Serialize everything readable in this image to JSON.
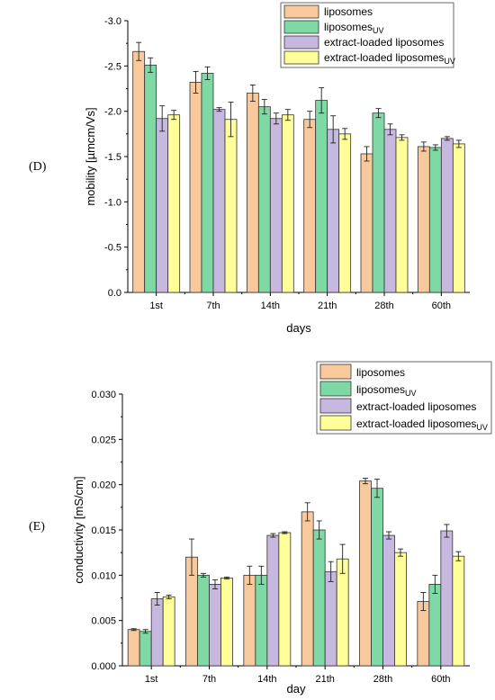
{
  "panels": [
    {
      "label": "(D)"
    },
    {
      "label": "(E)"
    }
  ],
  "chart_data": [
    {
      "type": "bar",
      "panel": "(D)",
      "xlabel": "days",
      "ylabel": "mobility [µmcm/Vs]",
      "categories": [
        "1st",
        "7th",
        "14th",
        "21th",
        "28th",
        "60th"
      ],
      "ylim": [
        0.0,
        -3.0
      ],
      "y_axis_inverted": true,
      "yticks": [
        "0.0",
        "-0.5",
        "-1.0",
        "-1.5",
        "-2.0",
        "-2.5",
        "-3.0"
      ],
      "ytick_values": [
        0.0,
        -0.5,
        -1.0,
        -1.5,
        -2.0,
        -2.5,
        -3.0
      ],
      "legend_position": "top-right",
      "series": [
        {
          "name": "liposomes",
          "color": "#F9C99E",
          "values": [
            -2.66,
            -2.32,
            -2.2,
            -1.91,
            -1.53,
            -1.61
          ],
          "errors": [
            0.1,
            0.12,
            0.09,
            0.09,
            0.08,
            0.05
          ]
        },
        {
          "name": "liposomesUV",
          "color": "#7FD9A4",
          "values": [
            -2.51,
            -2.42,
            -2.05,
            -2.12,
            -1.98,
            -1.6
          ],
          "errors": [
            0.08,
            0.07,
            0.08,
            0.14,
            0.05,
            0.03
          ]
        },
        {
          "name": "extract-loaded liposomes",
          "color": "#C6B8DE",
          "values": [
            -1.92,
            -2.02,
            -1.92,
            -1.8,
            -1.8,
            -1.7
          ],
          "errors": [
            0.14,
            0.02,
            0.06,
            0.15,
            0.06,
            0.02
          ]
        },
        {
          "name": "extract-loaded liposomesUV",
          "color": "#FFFF99",
          "values": [
            -1.96,
            -1.91,
            -1.96,
            -1.75,
            -1.71,
            -1.64
          ],
          "errors": [
            0.05,
            0.19,
            0.06,
            0.06,
            0.03,
            0.04
          ]
        }
      ],
      "legend": [
        {
          "main": "liposomes",
          "sub": ""
        },
        {
          "main": "liposomes",
          "sub": "UV"
        },
        {
          "main": "extract-loaded liposomes",
          "sub": ""
        },
        {
          "main": "extract-loaded liposomes",
          "sub": "UV"
        }
      ]
    },
    {
      "type": "bar",
      "panel": "(E)",
      "xlabel": "day",
      "ylabel": "conductivity [mS/cm]",
      "categories": [
        "1st",
        "7th",
        "14th",
        "21th",
        "28th",
        "60th"
      ],
      "ylim": [
        0.0,
        0.03
      ],
      "yticks": [
        "0.000",
        "0.005",
        "0.010",
        "0.015",
        "0.020",
        "0.025",
        "0.030"
      ],
      "ytick_values": [
        0.0,
        0.005,
        0.01,
        0.015,
        0.02,
        0.025,
        0.03
      ],
      "legend_position": "top-right",
      "series": [
        {
          "name": "liposomes",
          "color": "#F9C99E",
          "values": [
            0.004,
            0.012,
            0.01,
            0.017,
            0.0204,
            0.0071
          ],
          "errors": [
            0.0001,
            0.002,
            0.001,
            0.001,
            0.0003,
            0.001
          ]
        },
        {
          "name": "liposomesUV",
          "color": "#7FD9A4",
          "values": [
            0.0038,
            0.01,
            0.01,
            0.015,
            0.0196,
            0.009
          ],
          "errors": [
            0.0002,
            0.0002,
            0.001,
            0.001,
            0.001,
            0.001
          ]
        },
        {
          "name": "extract-loaded liposomes",
          "color": "#C6B8DE",
          "values": [
            0.0074,
            0.009,
            0.0144,
            0.0104,
            0.0144,
            0.0149
          ],
          "errors": [
            0.0007,
            0.0005,
            0.0002,
            0.0011,
            0.0004,
            0.0007
          ]
        },
        {
          "name": "extract-loaded liposomesUV",
          "color": "#FFFF99",
          "values": [
            0.0076,
            0.0097,
            0.0147,
            0.0118,
            0.0125,
            0.0121
          ],
          "errors": [
            0.0002,
            0.0001,
            0.0001,
            0.0016,
            0.0004,
            0.0005
          ]
        }
      ],
      "legend": [
        {
          "main": "liposomes",
          "sub": ""
        },
        {
          "main": "liposomes",
          "sub": "UV"
        },
        {
          "main": "extract-loaded liposomes",
          "sub": ""
        },
        {
          "main": "extract-loaded liposomes",
          "sub": "UV"
        }
      ]
    }
  ]
}
